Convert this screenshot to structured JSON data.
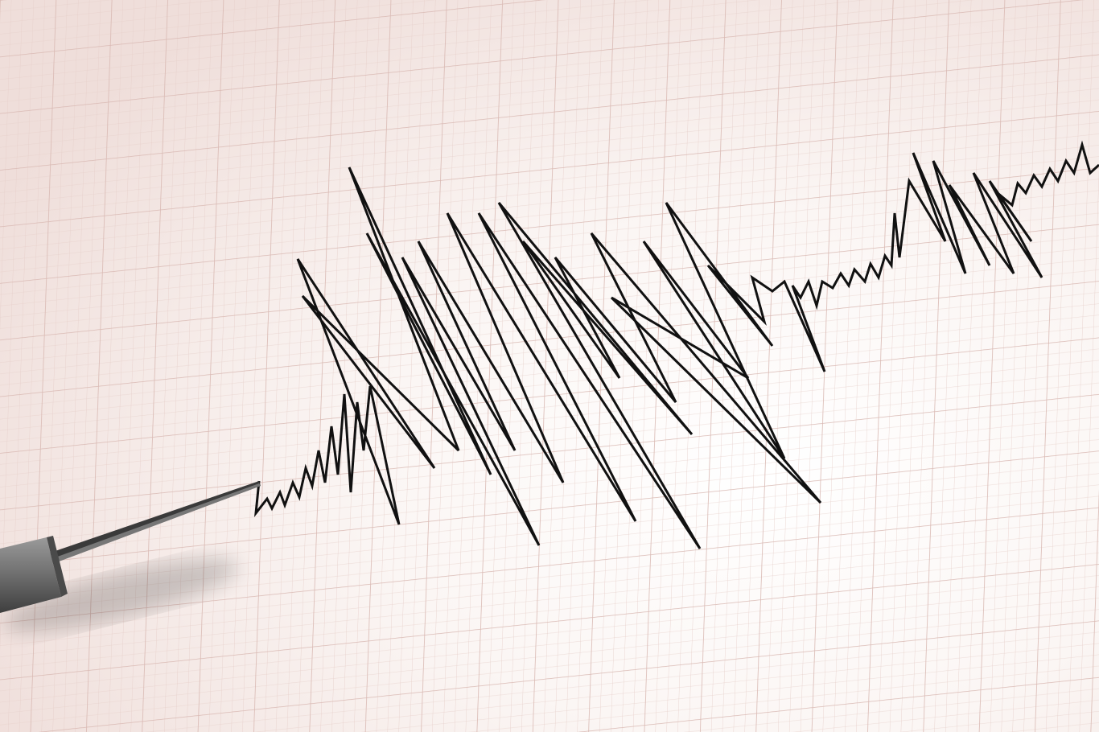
{
  "colors": {
    "paper": "#fbf6f4",
    "paper_edge": "#efdeda",
    "grid_minor": "#e6cfca",
    "grid_major": "#d9b9b3",
    "trace": "#111111",
    "stylus": "#6e6e6e"
  },
  "icons": [
    "seismograph-stylus"
  ]
}
